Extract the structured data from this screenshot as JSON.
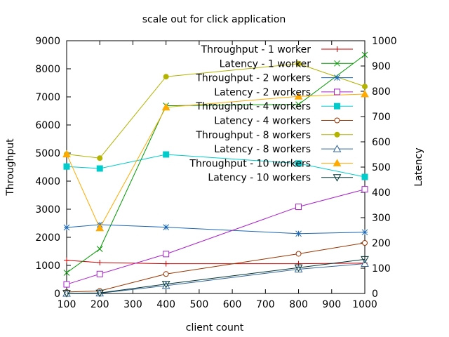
{
  "chart_data": {
    "type": "line",
    "title": "scale out for click application",
    "xlabel": "client count",
    "ylabel": "Throughput",
    "y2label": "Latency",
    "xlim": [
      100,
      1000
    ],
    "ylim": [
      0,
      9000
    ],
    "y2lim": [
      0,
      1000
    ],
    "xticks": [
      100,
      200,
      300,
      400,
      500,
      600,
      700,
      800,
      900,
      1000
    ],
    "yticks": [
      0,
      1000,
      2000,
      3000,
      4000,
      5000,
      6000,
      7000,
      8000,
      9000
    ],
    "y2ticks": [
      0,
      100,
      200,
      300,
      400,
      500,
      600,
      700,
      800,
      900,
      1000
    ],
    "grid": false,
    "legend_position": "top-right",
    "x": [
      100,
      200,
      400,
      800,
      1000
    ],
    "series": [
      {
        "name": "Throughput - 1 worker",
        "axis": "left",
        "color": "#cc0000",
        "marker": "plus",
        "values": [
          1180,
          1100,
          1060,
          1060,
          1080
        ]
      },
      {
        "name": "Latency - 1 worker",
        "axis": "right",
        "color": "#009900",
        "marker": "cross",
        "values": [
          82,
          176,
          743,
          748,
          944
        ]
      },
      {
        "name": "Throughput - 2 workers",
        "axis": "left",
        "color": "#1a66b3",
        "marker": "star",
        "values": [
          2350,
          2450,
          2360,
          2130,
          2180
        ]
      },
      {
        "name": "Latency - 2 workers",
        "axis": "right",
        "color": "#aa22cc",
        "marker": "square",
        "values": [
          36,
          77,
          156,
          343,
          412
        ]
      },
      {
        "name": "Throughput - 4 workers",
        "axis": "left",
        "color": "#00cccc",
        "marker": "filled-square",
        "values": [
          4520,
          4450,
          4950,
          4630,
          4150
        ]
      },
      {
        "name": "Latency - 4 workers",
        "axis": "right",
        "color": "#993300",
        "marker": "circle",
        "values": [
          6,
          10,
          77,
          157,
          200
        ]
      },
      {
        "name": "Throughput - 8 workers",
        "axis": "left",
        "color": "#b3b300",
        "marker": "filled-circle",
        "values": [
          4960,
          4820,
          7720,
          8180,
          7370
        ]
      },
      {
        "name": "Latency - 8 workers",
        "axis": "right",
        "color": "#336699",
        "marker": "triangle",
        "values": [
          0,
          1,
          31,
          96,
          118
        ]
      },
      {
        "name": "Throughput - 10 workers",
        "axis": "left",
        "color": "#ffaa00",
        "marker": "filled-triangle",
        "values": [
          4960,
          2330,
          6630,
          7020,
          7100
        ]
      },
      {
        "name": "Latency - 10 workers",
        "axis": "right",
        "color": "#003333",
        "marker": "triangle-down",
        "values": [
          1,
          2,
          37,
          102,
          135
        ]
      }
    ]
  }
}
